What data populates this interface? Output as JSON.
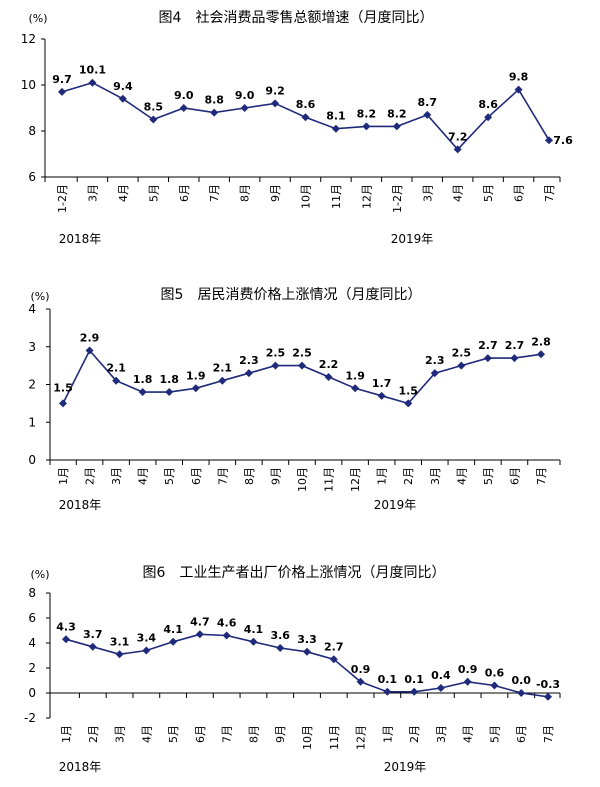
{
  "chart_data": [
    {
      "type": "line",
      "title": "图4　社会消费品零售总额增速（月度同比）",
      "unit_label": "(%)",
      "ylim": [
        6,
        12
      ],
      "yticks": [
        6,
        8,
        10,
        12
      ],
      "categories": [
        "1-2月",
        "3月",
        "4月",
        "5月",
        "6月",
        "7月",
        "8月",
        "9月",
        "10月",
        "11月",
        "12月",
        "1-2月",
        "3月",
        "4月",
        "5月",
        "6月",
        "7月"
      ],
      "values": [
        9.7,
        10.1,
        9.4,
        8.5,
        9.0,
        8.8,
        9.0,
        9.2,
        8.6,
        8.1,
        8.2,
        8.2,
        8.7,
        7.2,
        8.6,
        9.8,
        7.6
      ],
      "value_labels": [
        "9.7",
        "10.1",
        "9.4",
        "8.5",
        "9.0",
        "8.8",
        "9.0",
        "9.2",
        "8.6",
        "8.1",
        "8.2",
        "8.2",
        "8.7",
        "7.2",
        "8.6",
        "9.8",
        "7.6"
      ],
      "year_labels": [
        {
          "text": "2018年",
          "index": 0
        },
        {
          "text": "2019年",
          "index": 11
        }
      ],
      "color": "#1f2a7a",
      "grid": false
    },
    {
      "type": "line",
      "title": "图5　居民消费价格上涨情况（月度同比）",
      "unit_label": "(%)",
      "ylim": [
        0,
        4
      ],
      "yticks": [
        0,
        1,
        2,
        3,
        4
      ],
      "categories": [
        "1月",
        "2月",
        "3月",
        "4月",
        "5月",
        "6月",
        "7月",
        "8月",
        "9月",
        "10月",
        "11月",
        "12月",
        "1月",
        "2月",
        "3月",
        "4月",
        "5月",
        "6月",
        "7月"
      ],
      "values": [
        1.5,
        2.9,
        2.1,
        1.8,
        1.8,
        1.9,
        2.1,
        2.3,
        2.5,
        2.5,
        2.2,
        1.9,
        1.7,
        1.5,
        2.3,
        2.5,
        2.7,
        2.7,
        2.8
      ],
      "value_labels": [
        "1.5",
        "2.9",
        "2.1",
        "1.8",
        "1.8",
        "1.9",
        "2.1",
        "2.3",
        "2.5",
        "2.5",
        "2.2",
        "1.9",
        "1.7",
        "1.5",
        "2.3",
        "2.5",
        "2.7",
        "2.7",
        "2.8"
      ],
      "year_labels": [
        {
          "text": "2018年",
          "index": 0
        },
        {
          "text": "2019年",
          "index": 12
        }
      ],
      "color": "#1f2a7a",
      "grid": false
    },
    {
      "type": "line",
      "title": "图6　工业生产者出厂价格上涨情况（月度同比）",
      "unit_label": "(%)",
      "ylim": [
        -2,
        8
      ],
      "yticks": [
        -2,
        0,
        2,
        4,
        6,
        8
      ],
      "categories": [
        "1月",
        "2月",
        "3月",
        "4月",
        "5月",
        "6月",
        "7月",
        "8月",
        "9月",
        "10月",
        "11月",
        "12月",
        "1月",
        "2月",
        "3月",
        "4月",
        "5月",
        "6月",
        "7月"
      ],
      "values": [
        4.3,
        3.7,
        3.1,
        3.4,
        4.1,
        4.7,
        4.6,
        4.1,
        3.6,
        3.3,
        2.7,
        0.9,
        0.1,
        0.1,
        0.4,
        0.9,
        0.6,
        0.0,
        -0.3
      ],
      "value_labels": [
        "4.3",
        "3.7",
        "3.1",
        "3.4",
        "4.1",
        "4.7",
        "4.6",
        "4.1",
        "3.6",
        "3.3",
        "2.7",
        "0.9",
        "0.1",
        "0.1",
        "0.4",
        "0.9",
        "0.6",
        "0.0",
        "-0.3"
      ],
      "year_labels": [
        {
          "text": "2018年",
          "index": 0
        },
        {
          "text": "2019年",
          "index": 12
        }
      ],
      "color": "#1f2a7a",
      "grid": false
    }
  ]
}
